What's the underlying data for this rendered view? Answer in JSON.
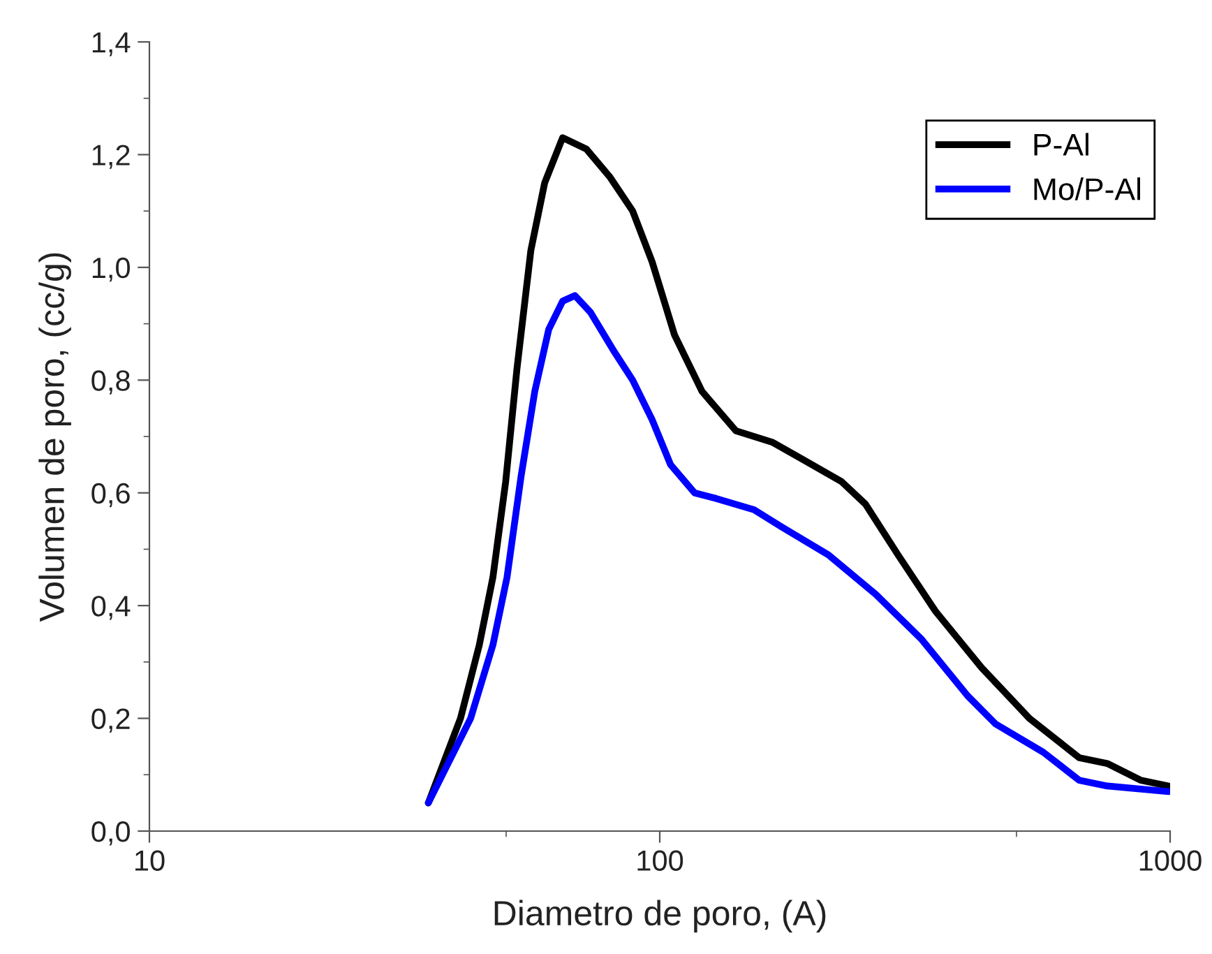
{
  "chart_data": {
    "type": "line",
    "xlabel": "Diametro de poro, (A)",
    "ylabel": "Volumen de poro, (cc/g)",
    "log": "x",
    "xlim": [
      10,
      1000
    ],
    "xticks": [
      10,
      {
        "value": 50,
        "label": null
      },
      100,
      {
        "value": 500,
        "label": null
      },
      1000
    ],
    "ylim": [
      0,
      1.4
    ],
    "yticks": [
      {
        "value": 0,
        "label": "0,0"
      },
      {
        "value": 0.1,
        "label": null
      },
      {
        "value": 0.2,
        "label": "0,2"
      },
      {
        "value": 0.3,
        "label": null
      },
      {
        "value": 0.4,
        "label": "0,4"
      },
      {
        "value": 0.5,
        "label": null
      },
      {
        "value": 0.6,
        "label": "0,6"
      },
      {
        "value": 0.7,
        "label": null
      },
      {
        "value": 0.8,
        "label": "0,8"
      },
      {
        "value": 0.9,
        "label": null
      },
      {
        "value": 1.0,
        "label": "1,0"
      },
      {
        "value": 1.1,
        "label": null
      },
      {
        "value": 1.2,
        "label": "1,2"
      },
      {
        "value": 1.3,
        "label": null
      },
      {
        "value": 1.4,
        "label": "1,4"
      }
    ],
    "grid": false,
    "legend": "top right",
    "marker": "none",
    "line_style": "solid",
    "series": [
      {
        "name": "P-Al",
        "color": "#000000",
        "x": [
          35.2,
          40.7,
          44.3,
          47.1,
          49.9,
          52.5,
          55.9,
          59.5,
          64.5,
          71.8,
          79.9,
          88.5,
          96.6,
          106.9,
          121,
          141,
          166,
          190,
          227,
          253,
          293,
          347,
          427,
          530,
          664,
          753,
          877,
          993
        ],
        "values": [
          0.05,
          0.2,
          0.33,
          0.45,
          0.62,
          0.82,
          1.03,
          1.15,
          1.23,
          1.21,
          1.16,
          1.1,
          1.01,
          0.88,
          0.78,
          0.71,
          0.69,
          0.66,
          0.62,
          0.58,
          0.49,
          0.39,
          0.29,
          0.2,
          0.13,
          0.12,
          0.09,
          0.08
        ]
      },
      {
        "name": "Mo/P-Al",
        "color": "#0000ff",
        "x": [
          35.2,
          42.6,
          47.1,
          50.2,
          53.5,
          56.9,
          60.6,
          64.5,
          68.2,
          73.2,
          81.5,
          88.5,
          96.6,
          105,
          117,
          129,
          153,
          173,
          214,
          265,
          326,
          401,
          455,
          564,
          664,
          753,
          993
        ],
        "values": [
          0.05,
          0.2,
          0.33,
          0.45,
          0.63,
          0.78,
          0.89,
          0.94,
          0.95,
          0.92,
          0.85,
          0.8,
          0.73,
          0.65,
          0.6,
          0.59,
          0.57,
          0.54,
          0.49,
          0.42,
          0.34,
          0.24,
          0.19,
          0.14,
          0.09,
          0.08,
          0.07
        ]
      }
    ]
  }
}
